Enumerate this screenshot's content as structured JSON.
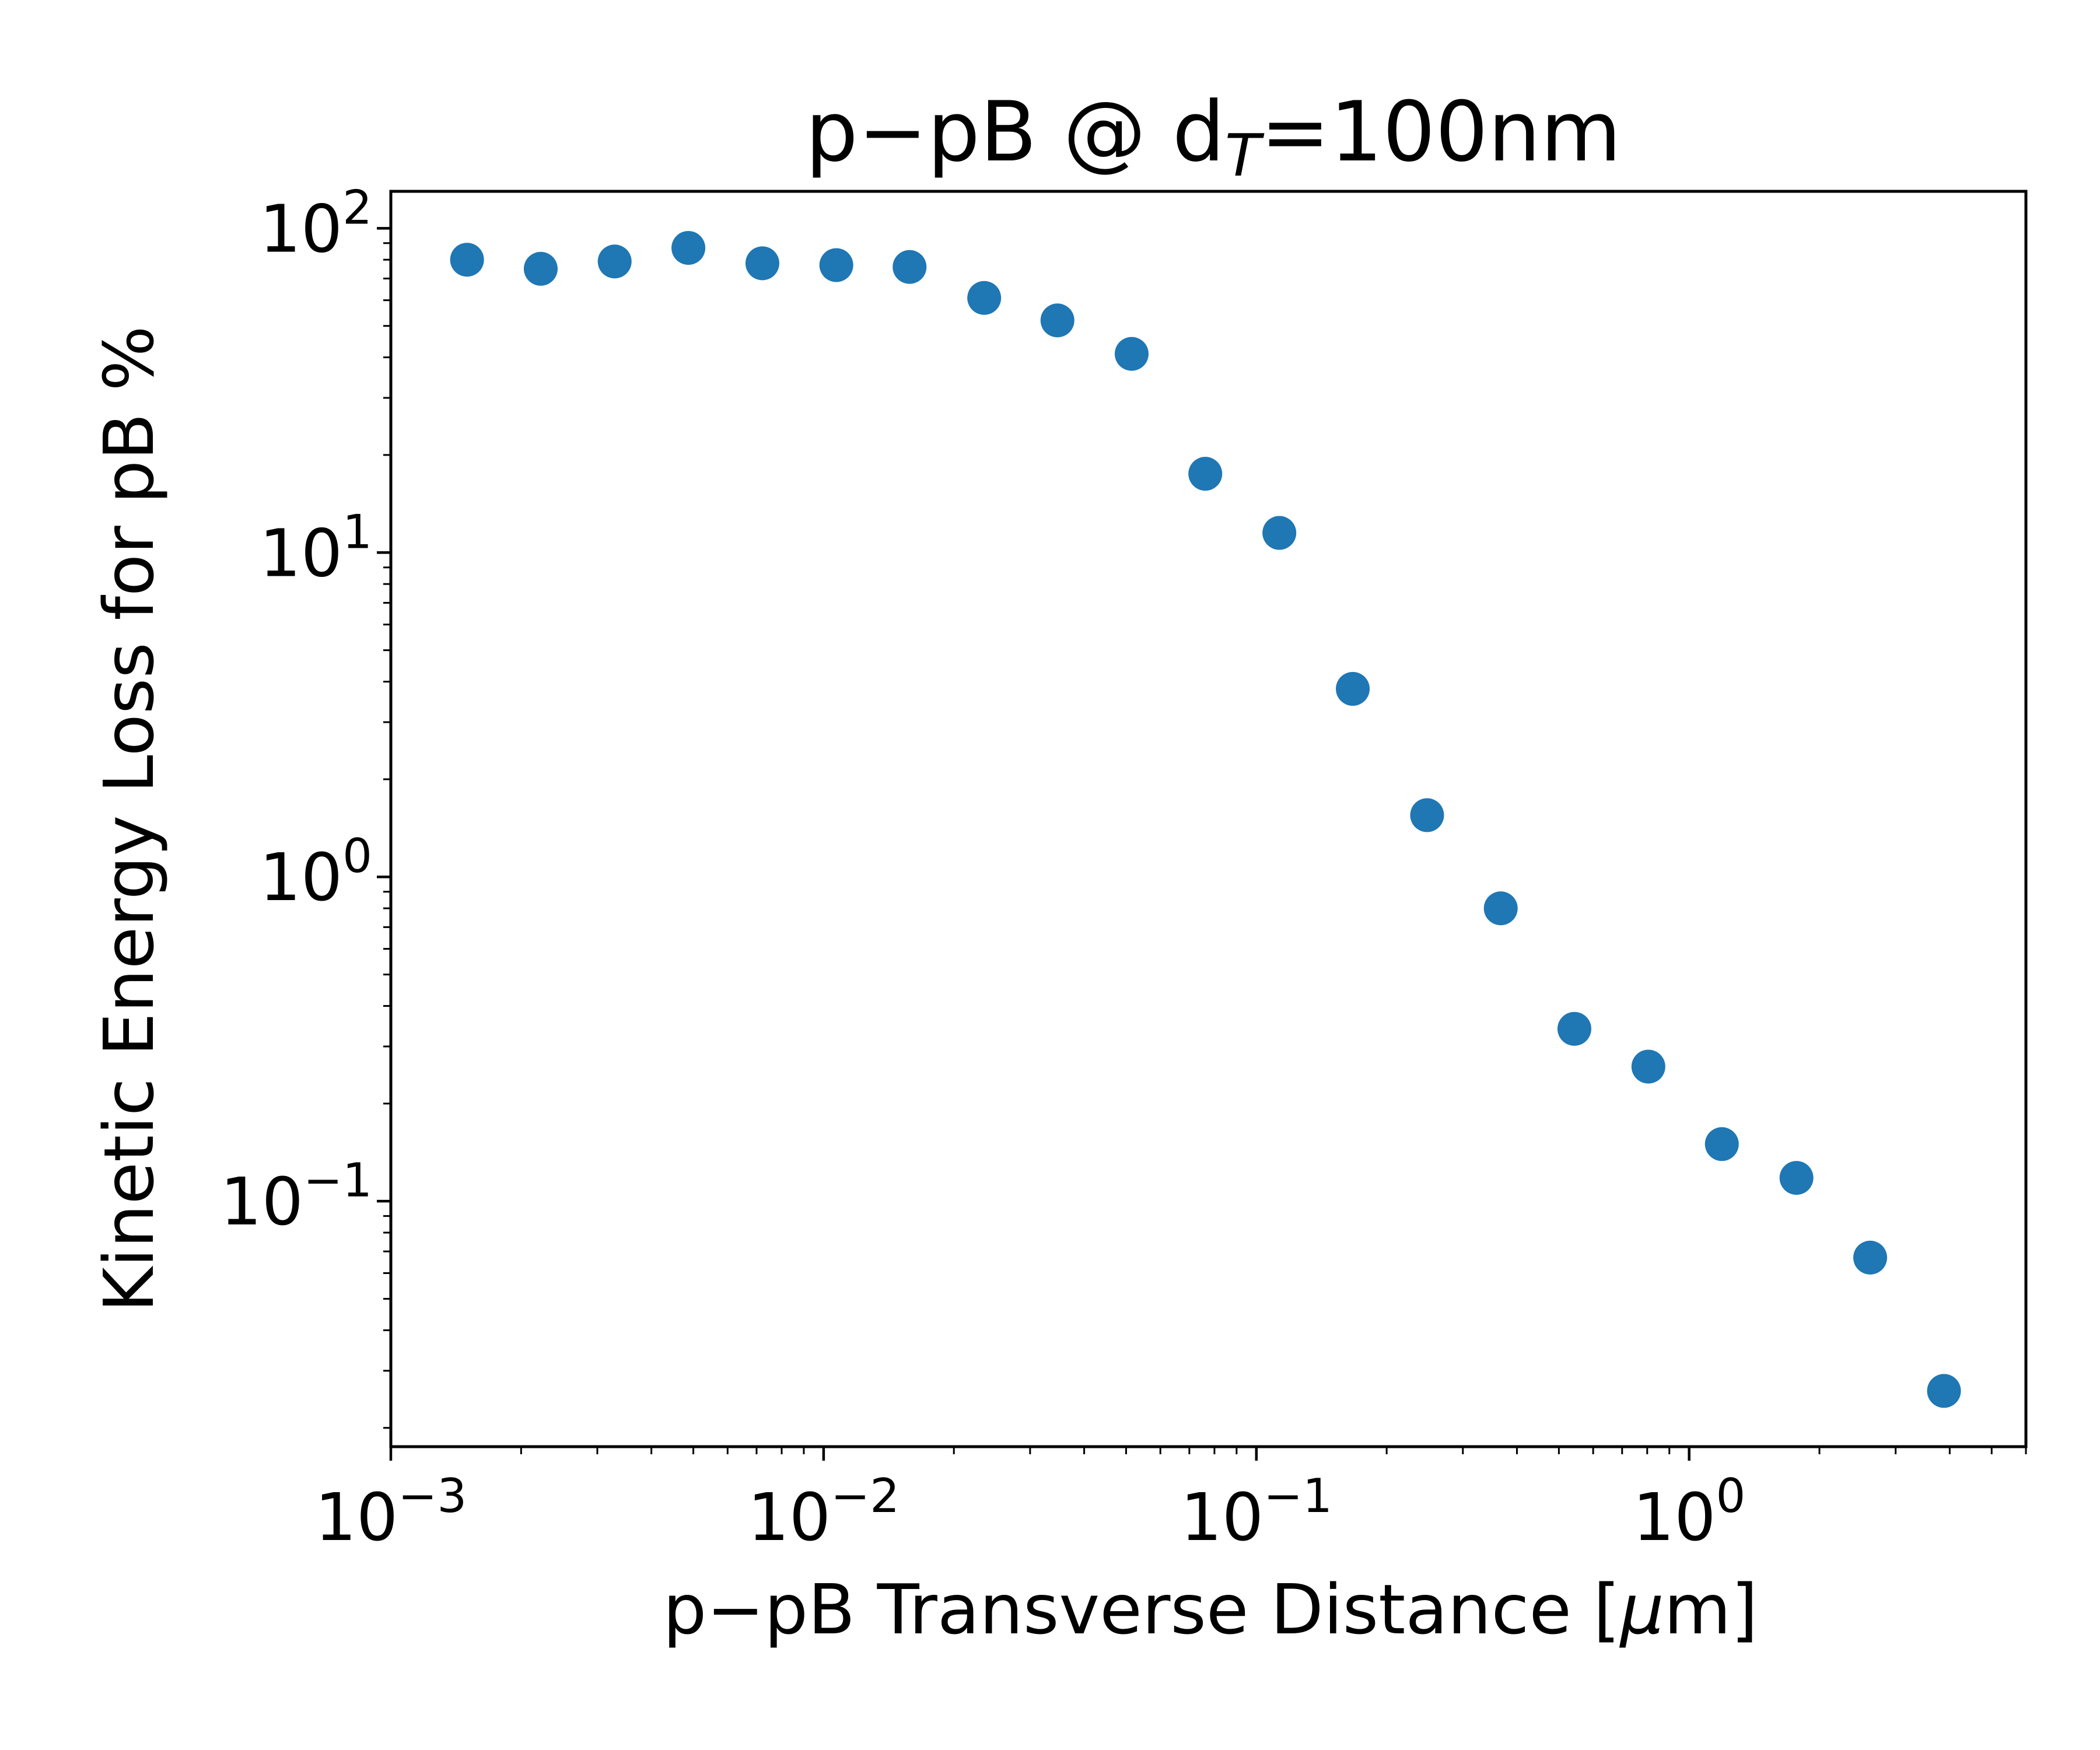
{
  "chart_data": {
    "type": "scatter",
    "title": "p−pB @ d",
    "title_subscript": "T",
    "title_suffix": "=100nm",
    "xlabel": "p−pB Transverse Distance  [",
    "xlabel_mu": "μ",
    "xlabel_suffix": "m]",
    "ylabel": "Kinetic Energy Loss for pB %",
    "xscale": "log",
    "yscale": "log",
    "xlim": [
      0.001,
      6.0
    ],
    "ylim": [
      0.0175,
      130
    ],
    "grid": false,
    "marker_color": "#1f77b4",
    "x_ticks": [
      {
        "base": "10",
        "exp": "−3",
        "value": 0.001
      },
      {
        "base": "10",
        "exp": "−2",
        "value": 0.01
      },
      {
        "base": "10",
        "exp": "−1",
        "value": 0.1
      },
      {
        "base": "10",
        "exp": "0",
        "value": 1
      }
    ],
    "y_ticks": [
      {
        "base": "10",
        "exp": "−1",
        "value": 0.1
      },
      {
        "base": "10",
        "exp": "0",
        "value": 1
      },
      {
        "base": "10",
        "exp": "1",
        "value": 10
      },
      {
        "base": "10",
        "exp": "2",
        "value": 100
      }
    ],
    "x": [
      0.0015,
      0.00222,
      0.00329,
      0.00487,
      0.00722,
      0.0107,
      0.0158,
      0.0235,
      0.0347,
      0.0515,
      0.0762,
      0.113,
      0.167,
      0.248,
      0.367,
      0.543,
      0.805,
      1.19,
      1.77,
      2.62,
      3.88
    ],
    "y": [
      80,
      75,
      79,
      87,
      78,
      77,
      76,
      61,
      52,
      41,
      17.5,
      11.5,
      3.8,
      1.55,
      0.8,
      0.34,
      0.26,
      0.15,
      0.118,
      0.067,
      0.026
    ]
  }
}
